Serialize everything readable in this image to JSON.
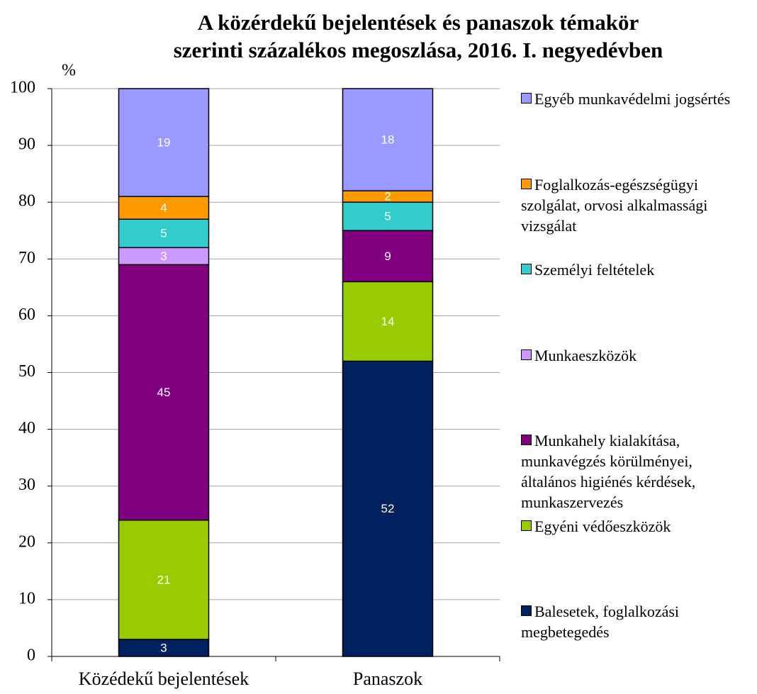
{
  "chart_data": {
    "type": "stacked_bar",
    "title": [
      "A közérdekű bejelentések és panaszok témakör",
      "szerinti százalékos megoszlása, 2016. I. negyedévben"
    ],
    "y_axis_label": "%",
    "categories": [
      "Közédekű bejelentések",
      "Panaszok"
    ],
    "series": [
      {
        "name": "Balesetek, foglalkozási megbetegedés",
        "color": "#002060",
        "values": [
          3,
          52
        ]
      },
      {
        "name": "Egyéni védőeszközök",
        "color": "#99cc00",
        "values": [
          21,
          14
        ]
      },
      {
        "name": "Munkahely kialakítása, munkavégzés körülményei, általános higiénés kérdések, munkaszervezés",
        "color": "#800080",
        "values": [
          45,
          9
        ]
      },
      {
        "name": "Munkaeszközök",
        "color": "#cc99ff",
        "values": [
          3,
          null
        ]
      },
      {
        "name": "Személyi feltételek",
        "color": "#33cccc",
        "values": [
          5,
          5
        ]
      },
      {
        "name": "Foglalkozás-egészségügyi szolgálat, orvosi alkalmassági vizsgálat",
        "color": "#ff9900",
        "values": [
          4,
          2
        ]
      },
      {
        "name": "Egyéb munkavédelmi jogsértés",
        "color": "#9999ff",
        "values": [
          19,
          18
        ]
      }
    ],
    "ylim": [
      0,
      100
    ],
    "yticks": [
      0,
      10,
      20,
      30,
      40,
      50,
      60,
      70,
      80,
      90,
      100
    ],
    "grid": true,
    "legend": "right"
  }
}
